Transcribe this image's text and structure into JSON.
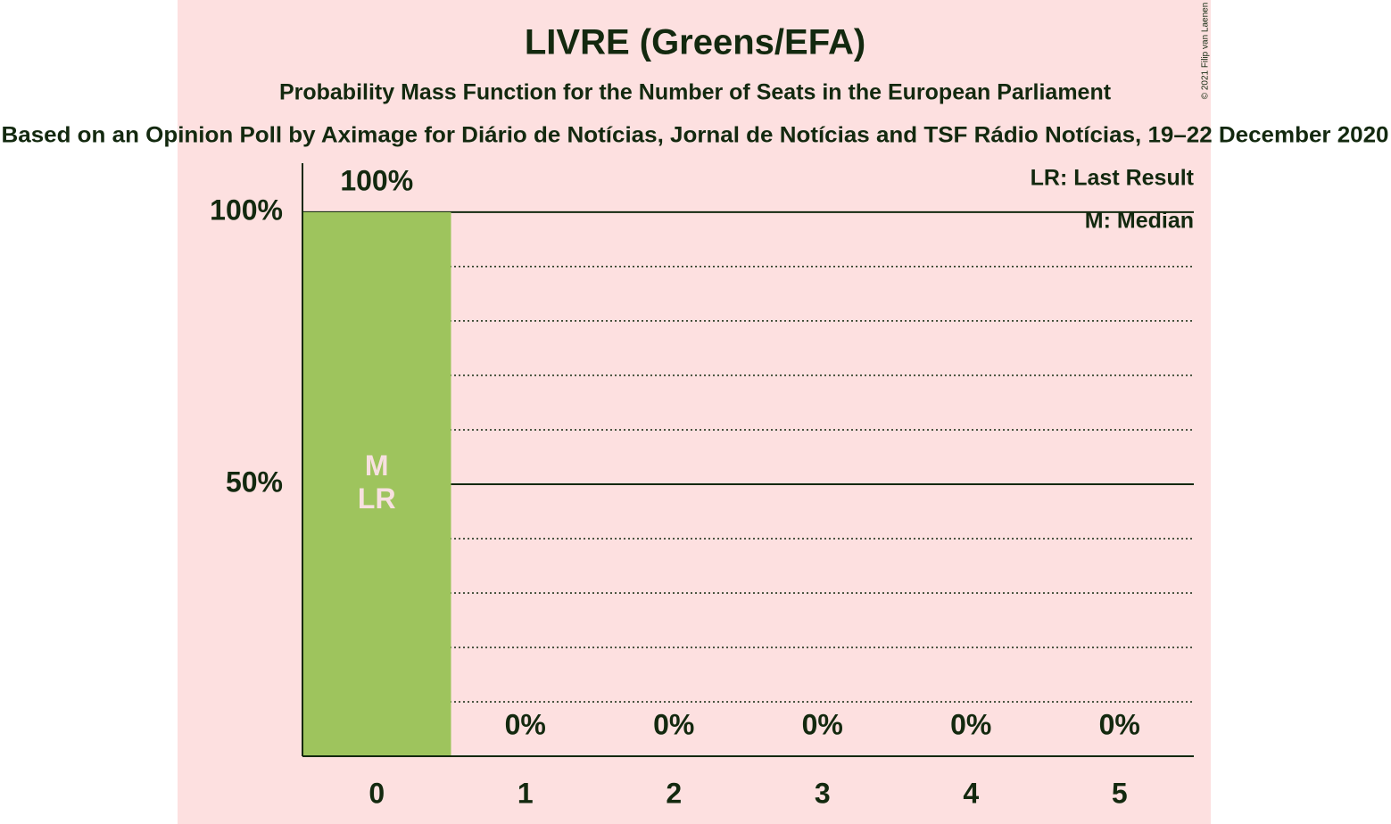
{
  "chart_data": {
    "type": "bar",
    "title": "LIVRE (Greens/EFA)",
    "subtitle": "Probability Mass Function for the Number of Seats in the European Parliament",
    "source": "Based on an Opinion Poll by Aximage for Diário de Notícias, Jornal de Notícias and TSF Rádio Notícias, 19–22 December 2020",
    "copyright": "© 2021 Filip van Laenen",
    "categories": [
      "0",
      "1",
      "2",
      "3",
      "4",
      "5"
    ],
    "values": [
      100,
      0,
      0,
      0,
      0,
      0
    ],
    "value_labels": [
      "100%",
      "0%",
      "0%",
      "0%",
      "0%",
      "0%"
    ],
    "color": "#9ec45d",
    "ylim": [
      0,
      109
    ],
    "yticks": [
      {
        "value": 50,
        "label": "50%"
      },
      {
        "value": 100,
        "label": "100%"
      }
    ],
    "minor_yticks": [
      10,
      20,
      30,
      40,
      60,
      70,
      80,
      90
    ],
    "grid": true,
    "markers": [
      {
        "index": 0,
        "labels": [
          "M",
          "LR"
        ]
      }
    ],
    "legend": [
      "LR: Last Result",
      "M: Median"
    ]
  }
}
